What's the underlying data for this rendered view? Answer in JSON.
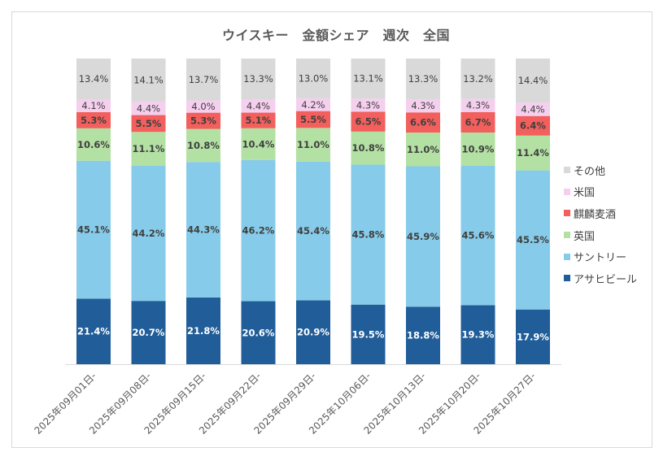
{
  "chart_data": {
    "type": "bar",
    "stacked": true,
    "normalized": true,
    "title": "ウイスキー　金額シェア　週次　全国",
    "categories": [
      "2025年09月01日-",
      "2025年09月08日-",
      "2025年09月15日-",
      "2025年09月22日-",
      "2025年09月29日-",
      "2025年10月06日-",
      "2025年10月13日-",
      "2025年10月20日-",
      "2025年10月27日-"
    ],
    "series": [
      {
        "name": "アサヒビール",
        "color": "#215e99",
        "label_color": "#ffffff",
        "values": [
          21.4,
          20.7,
          21.8,
          20.6,
          20.9,
          19.5,
          18.8,
          19.3,
          17.9
        ]
      },
      {
        "name": "サントリー",
        "color": "#86cbe9",
        "label_color": "#404040",
        "values": [
          45.1,
          44.2,
          44.3,
          46.2,
          45.4,
          45.8,
          45.9,
          45.6,
          45.5
        ]
      },
      {
        "name": "英国",
        "color": "#b3e0a3",
        "label_color": "#404040",
        "values": [
          10.6,
          11.1,
          10.8,
          10.4,
          11.0,
          10.8,
          11.0,
          10.9,
          11.4
        ]
      },
      {
        "name": "麒麟麦酒",
        "color": "#f25f5c",
        "label_color": "#404040",
        "values": [
          5.3,
          5.5,
          5.3,
          5.1,
          5.5,
          6.5,
          6.6,
          6.7,
          6.4
        ]
      },
      {
        "name": "米国",
        "color": "#f5cfee",
        "label_color": "#404040",
        "values": [
          4.1,
          4.4,
          4.0,
          4.4,
          4.2,
          4.3,
          4.3,
          4.3,
          4.4
        ]
      },
      {
        "name": "その他",
        "color": "#d9d9d9",
        "label_color": "#404040",
        "values": [
          13.4,
          14.1,
          13.7,
          13.3,
          13.0,
          13.1,
          13.3,
          13.2,
          14.4
        ]
      }
    ],
    "value_suffix": "%",
    "legend_position": "right",
    "legend_order": [
      "その他",
      "米国",
      "麒麟麦酒",
      "英国",
      "サントリー",
      "アサヒビール"
    ]
  }
}
